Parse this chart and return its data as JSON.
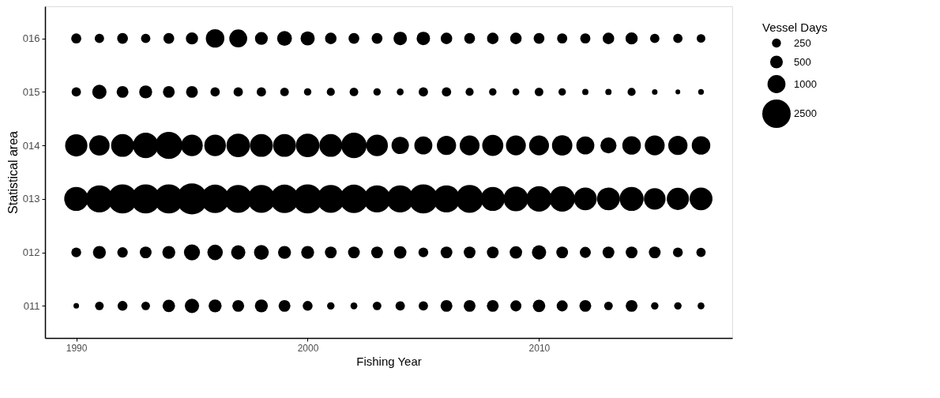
{
  "chart_data": {
    "type": "bubble",
    "xlabel": "Fishing Year",
    "ylabel": "Statistical area",
    "legend_title": "Vessel Days",
    "grid": false,
    "x": [
      1990,
      1991,
      1992,
      1993,
      1994,
      1995,
      1996,
      1997,
      1998,
      1999,
      2000,
      2001,
      2002,
      2003,
      2004,
      2005,
      2006,
      2007,
      2008,
      2009,
      2010,
      2011,
      2012,
      2013,
      2014,
      2015,
      2016,
      2017
    ],
    "xlim": [
      1988.65,
      2018.35
    ],
    "xticks": [
      1990,
      2000,
      2010
    ],
    "ylim": [
      10.4,
      16.6
    ],
    "yticks": [
      {
        "value": 11,
        "label": "011"
      },
      {
        "value": 12,
        "label": "012"
      },
      {
        "value": 13,
        "label": "013"
      },
      {
        "value": 14,
        "label": "014"
      },
      {
        "value": 15,
        "label": "015"
      },
      {
        "value": 16,
        "label": "016"
      }
    ],
    "size_legend": [
      250,
      500,
      1000,
      2500
    ],
    "series": [
      {
        "color": "#000000",
        "values": [
          16,
          16,
          16,
          16,
          16,
          16,
          16,
          16,
          16,
          16,
          16,
          16,
          16,
          16,
          16,
          16,
          16,
          16,
          16,
          16,
          16,
          16,
          16,
          16,
          16,
          16,
          16,
          16
        ],
        "sizes": [
          315,
          270,
          360,
          270,
          360,
          460,
          1060,
          990,
          510,
          680,
          620,
          410,
          360,
          360,
          560,
          560,
          410,
          360,
          410,
          410,
          360,
          320,
          320,
          410,
          460,
          270,
          270,
          230
        ]
      },
      {
        "color": "#000000",
        "values": [
          15,
          15,
          15,
          15,
          15,
          15,
          15,
          15,
          15,
          15,
          15,
          15,
          15,
          15,
          15,
          15,
          15,
          15,
          15,
          15,
          15,
          15,
          15,
          15,
          15,
          15,
          15,
          15
        ],
        "sizes": [
          270,
          630,
          430,
          520,
          430,
          430,
          270,
          270,
          270,
          230,
          170,
          200,
          230,
          170,
          145,
          270,
          270,
          200,
          170,
          145,
          230,
          170,
          120,
          120,
          200,
          95,
          70,
          100
        ]
      },
      {
        "color": "#000000",
        "values": [
          14,
          14,
          14,
          14,
          14,
          14,
          14,
          14,
          14,
          14,
          14,
          14,
          14,
          14,
          14,
          14,
          14,
          14,
          14,
          14,
          14,
          14,
          14,
          14,
          14,
          14,
          14,
          14
        ],
        "sizes": [
          1530,
          1280,
          1620,
          1990,
          2290,
          1450,
          1450,
          1710,
          1620,
          1620,
          1710,
          1620,
          1990,
          1450,
          930,
          1000,
          1140,
          1220,
          1370,
          1220,
          1220,
          1280,
          1000,
          800,
          1060,
          1220,
          1140,
          1060
        ]
      },
      {
        "color": "#000000",
        "values": [
          13,
          13,
          13,
          13,
          13,
          13,
          13,
          13,
          13,
          13,
          13,
          13,
          13,
          13,
          13,
          13,
          13,
          13,
          13,
          13,
          13,
          13,
          13,
          13,
          13,
          13,
          13,
          13
        ],
        "sizes": [
          1790,
          2290,
          2620,
          2620,
          2620,
          2960,
          2500,
          2390,
          2390,
          2500,
          2620,
          2390,
          2500,
          2290,
          2290,
          2620,
          2290,
          2390,
          1790,
          1890,
          1990,
          1990,
          1620,
          1620,
          1790,
          1450,
          1530,
          1620
        ]
      },
      {
        "color": "#000000",
        "values": [
          12,
          12,
          12,
          12,
          12,
          12,
          12,
          12,
          12,
          12,
          12,
          12,
          12,
          12,
          12,
          12,
          12,
          12,
          12,
          12,
          12,
          12,
          12,
          12,
          12,
          12,
          12,
          12
        ],
        "sizes": [
          300,
          520,
          340,
          430,
          520,
          800,
          740,
          630,
          680,
          520,
          520,
          430,
          430,
          430,
          480,
          300,
          430,
          430,
          430,
          480,
          630,
          430,
          380,
          430,
          430,
          430,
          300,
          270
        ]
      },
      {
        "color": "#000000",
        "values": [
          11,
          11,
          11,
          11,
          11,
          11,
          11,
          11,
          11,
          11,
          11,
          11,
          11,
          11,
          11,
          11,
          11,
          11,
          11,
          11,
          11,
          11,
          11,
          11,
          11,
          11,
          11,
          11
        ],
        "sizes": [
          95,
          230,
          300,
          230,
          480,
          630,
          520,
          430,
          520,
          430,
          300,
          170,
          145,
          230,
          270,
          270,
          430,
          430,
          430,
          380,
          480,
          380,
          430,
          230,
          430,
          170,
          170,
          145
        ]
      }
    ]
  }
}
